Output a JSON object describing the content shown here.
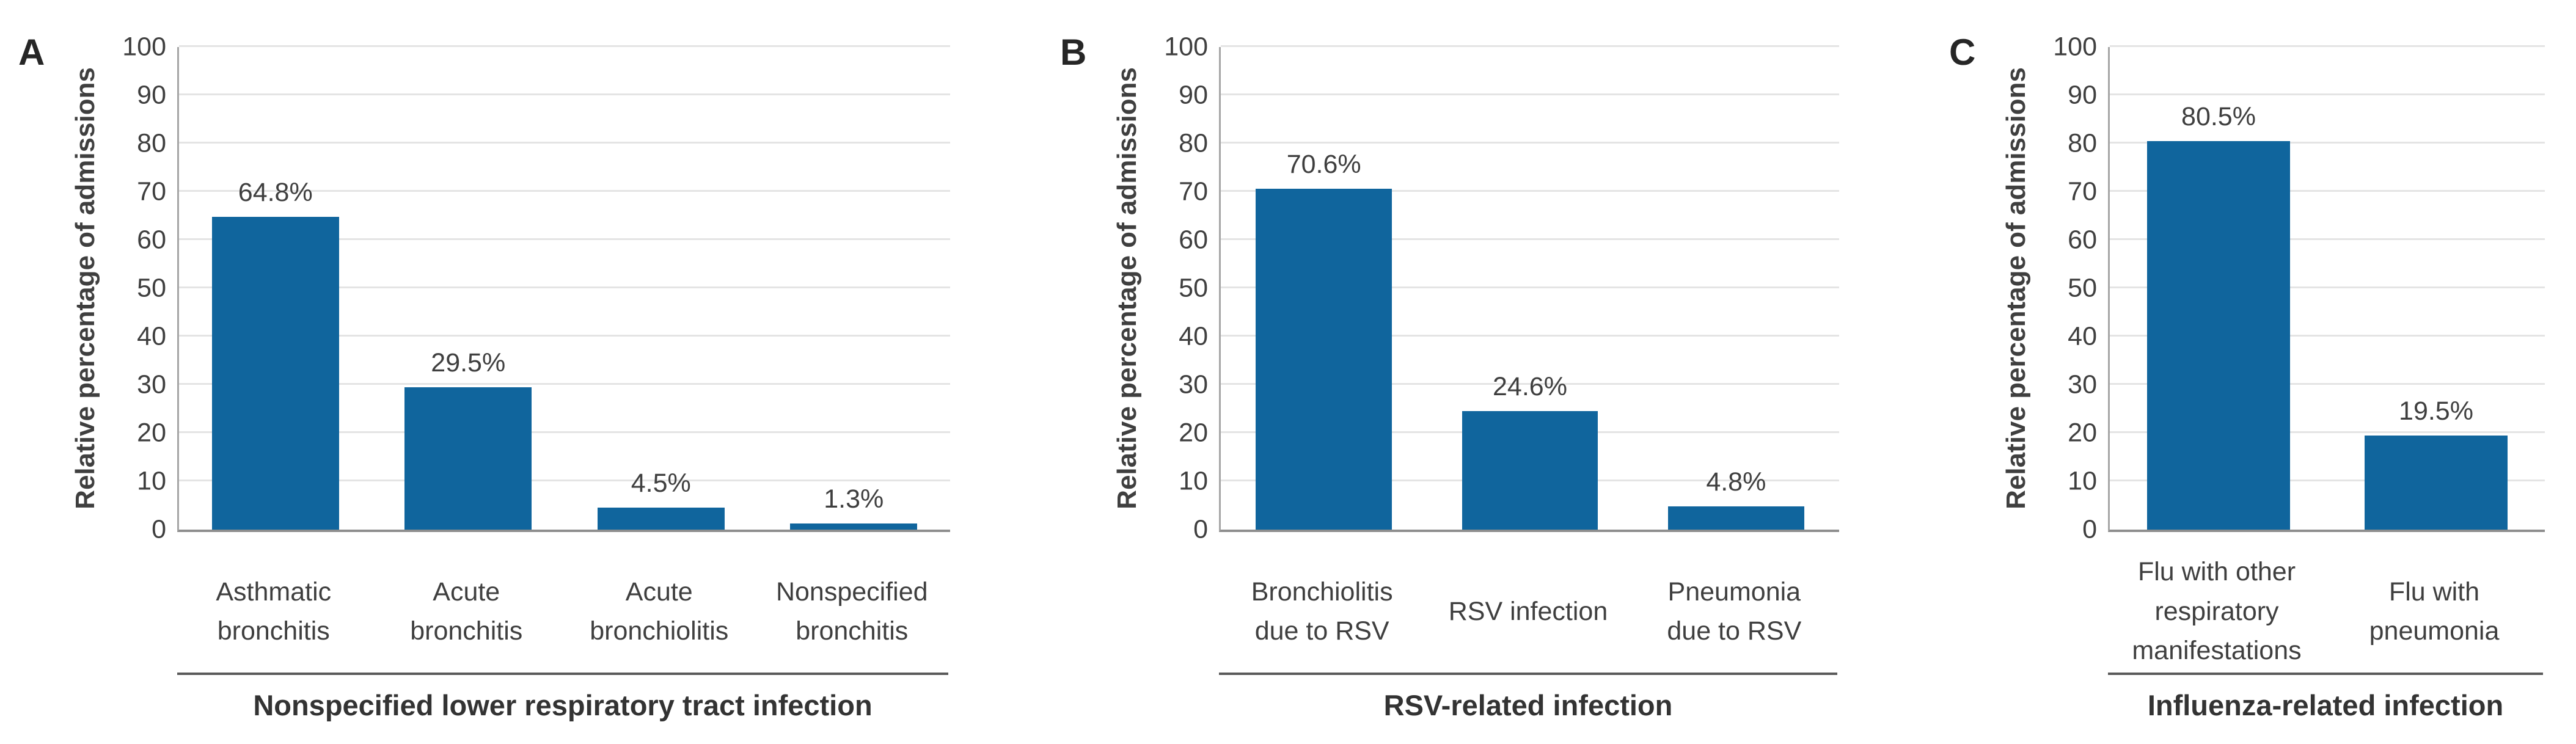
{
  "figure": {
    "ylabel_shared": "Relative percentage of admissions",
    "colors": {
      "bar": "#10659D",
      "text": "#3F3F3F",
      "grid": "#E4E4E4",
      "axis": "#A6A6A6",
      "baseline": "#8E8E8E",
      "divider": "#5A5A5A"
    }
  },
  "chart_data": [
    {
      "type": "bar",
      "panel_label": "A",
      "title": "",
      "ylabel": "Relative percentage of admissions",
      "xlabel": "Nonspecified lower respiratory tract infection",
      "ylim": [
        0,
        100
      ],
      "yticks": [
        0,
        10,
        20,
        30,
        40,
        50,
        60,
        70,
        80,
        90,
        100
      ],
      "grid": true,
      "legend": false,
      "categories": [
        "Asthmatic bronchitis",
        "Acute bronchitis",
        "Acute bronchiolitis",
        "Nonspecified bronchitis"
      ],
      "categories_wrapped": [
        [
          "Asthmatic",
          "bronchitis"
        ],
        [
          "Acute",
          "bronchitis"
        ],
        [
          "Acute",
          "bronchiolitis"
        ],
        [
          "Nonspecified",
          "bronchitis"
        ]
      ],
      "values": [
        64.8,
        29.5,
        4.5,
        1.3
      ],
      "data_labels": [
        "64.8%",
        "29.5%",
        "4.5%",
        "1.3%"
      ]
    },
    {
      "type": "bar",
      "panel_label": "B",
      "title": "",
      "ylabel": "Relative percentage of admissions",
      "xlabel": "RSV-related infection",
      "ylim": [
        0,
        100
      ],
      "yticks": [
        0,
        10,
        20,
        30,
        40,
        50,
        60,
        70,
        80,
        90,
        100
      ],
      "grid": true,
      "legend": false,
      "categories": [
        "Bronchiolitis due to RSV",
        "RSV infection",
        "Pneumonia due to RSV"
      ],
      "categories_wrapped": [
        [
          "Bronchiolitis",
          "due to RSV"
        ],
        [
          "RSV infection"
        ],
        [
          "Pneumonia",
          "due to RSV"
        ]
      ],
      "values": [
        70.6,
        24.6,
        4.8
      ],
      "data_labels": [
        "70.6%",
        "24.6%",
        "4.8%"
      ]
    },
    {
      "type": "bar",
      "panel_label": "C",
      "title": "",
      "ylabel": "Relative percentage of admissions",
      "xlabel": "Influenza-related infection",
      "ylim": [
        0,
        100
      ],
      "yticks": [
        0,
        10,
        20,
        30,
        40,
        50,
        60,
        70,
        80,
        90,
        100
      ],
      "grid": true,
      "legend": false,
      "categories": [
        "Flu with other respiratory manifestations",
        "Flu with pneumonia"
      ],
      "categories_wrapped": [
        [
          "Flu with other",
          "respiratory",
          "manifestations"
        ],
        [
          "Flu with",
          "pneumonia"
        ]
      ],
      "values": [
        80.5,
        19.5
      ],
      "data_labels": [
        "80.5%",
        "19.5%"
      ]
    }
  ]
}
